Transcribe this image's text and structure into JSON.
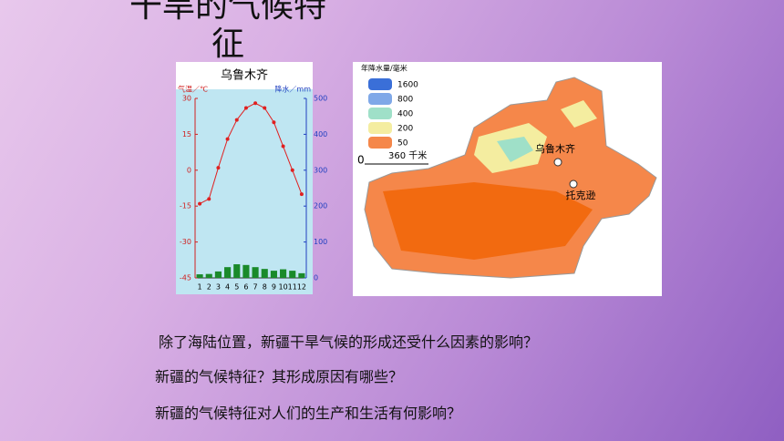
{
  "title": "干旱的气候特征",
  "climate_chart": {
    "type": "bar-line",
    "title": "乌鲁木齐",
    "y_label": "气温／℃",
    "y2_label": "降水／mm",
    "categories": [
      "1",
      "2",
      "3",
      "4",
      "5",
      "6",
      "7",
      "8",
      "9",
      "10",
      "11",
      "12"
    ],
    "temperature": {
      "color": "#e02020",
      "values": [
        -14,
        -12,
        1,
        13,
        21,
        26,
        28,
        26,
        20,
        10,
        0,
        -10
      ]
    },
    "precipitation": {
      "color": "#1a8a2a",
      "axis": "y2",
      "values": [
        10,
        11,
        18,
        30,
        38,
        36,
        30,
        25,
        20,
        24,
        20,
        13
      ]
    },
    "ylim": [
      -45,
      30
    ],
    "yticks": [
      30,
      15,
      0,
      -15,
      -30,
      -45
    ],
    "y2lim": [
      0,
      500
    ],
    "y2ticks": [
      500,
      400,
      300,
      200,
      100,
      0
    ]
  },
  "map": {
    "legend_title": "年降水量/毫米",
    "legend": [
      {
        "label": 1600,
        "color": "#3a6fd8"
      },
      {
        "label": 800,
        "color": "#7fa8e8"
      },
      {
        "label": 400,
        "color": "#9fe0c8"
      },
      {
        "label": 200,
        "color": "#f4eda0"
      },
      {
        "label": 50,
        "color": "#f5874a"
      }
    ],
    "scale_zero": "0",
    "scale_label": "360 千米",
    "places": [
      "乌鲁木齐",
      "托克逊"
    ]
  },
  "questions": [
    "除了海陆位置，新疆干旱气候的形成还受什么因素的影响？",
    "新疆的气候特征？其形成原因有哪些？",
    "新疆的气候特征对人们的生产和生活有何影响？"
  ]
}
